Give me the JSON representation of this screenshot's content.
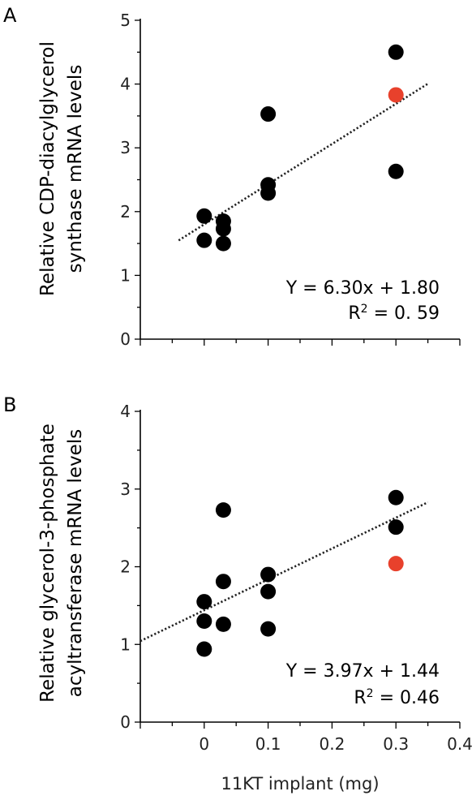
{
  "chart_data": [
    {
      "type": "scatter",
      "panel_label": "A",
      "ylabel": "Relative CDP-diacylglycerol synthase mRNA levels",
      "ylabel_lines": [
        "Relative CDP-diacylglycerol",
        "synthase mRNA levels"
      ],
      "xlabel": "",
      "xlim": [
        -0.1,
        0.4
      ],
      "ylim": [
        0,
        5
      ],
      "yticks": [
        "0",
        "1",
        "2",
        "3",
        "4",
        "5"
      ],
      "xticks": [],
      "grid": false,
      "equation": "Y = 6.30x + 1.80",
      "r2_label": "R",
      "r2_sup": "2",
      "r2_value": " = 0. 59",
      "trendline": {
        "slope": 6.3,
        "intercept": 1.8,
        "x_range": [
          -0.04,
          0.35
        ]
      },
      "points": [
        {
          "x": 0,
          "y": 1.93,
          "color": "#000000"
        },
        {
          "x": 0,
          "y": 1.55,
          "color": "#000000"
        },
        {
          "x": 0.03,
          "y": 1.85,
          "color": "#000000"
        },
        {
          "x": 0.03,
          "y": 1.73,
          "color": "#000000"
        },
        {
          "x": 0.03,
          "y": 1.5,
          "color": "#000000"
        },
        {
          "x": 0.1,
          "y": 3.53,
          "color": "#000000"
        },
        {
          "x": 0.1,
          "y": 2.42,
          "color": "#000000"
        },
        {
          "x": 0.1,
          "y": 2.29,
          "color": "#000000"
        },
        {
          "x": 0.3,
          "y": 4.5,
          "color": "#000000"
        },
        {
          "x": 0.3,
          "y": 3.83,
          "color": "#e8412c"
        },
        {
          "x": 0.3,
          "y": 2.63,
          "color": "#000000"
        }
      ]
    },
    {
      "type": "scatter",
      "panel_label": "B",
      "ylabel": "Relative glycerol-3-phosphate acyltransferase mRNA levels",
      "ylabel_lines": [
        "Relative glycerol-3-phosphate",
        "acyltransferase mRNA levels"
      ],
      "xlabel": "11KT implant (mg)",
      "xlim": [
        -0.1,
        0.4
      ],
      "ylim": [
        0,
        4
      ],
      "yticks": [
        "0",
        "1",
        "2",
        "3",
        "4"
      ],
      "xticks": [
        "0",
        "0.1",
        "0.2",
        "0.3",
        "0.4"
      ],
      "grid": false,
      "equation": "Y = 3.97x + 1.44",
      "r2_label": "R",
      "r2_sup": "2",
      "r2_value": " = 0.46",
      "trendline": {
        "slope": 3.97,
        "intercept": 1.44,
        "x_range": [
          -0.1,
          0.35
        ]
      },
      "points": [
        {
          "x": 0,
          "y": 1.55,
          "color": "#000000"
        },
        {
          "x": 0,
          "y": 1.3,
          "color": "#000000"
        },
        {
          "x": 0,
          "y": 0.94,
          "color": "#000000"
        },
        {
          "x": 0.03,
          "y": 2.73,
          "color": "#000000"
        },
        {
          "x": 0.03,
          "y": 1.81,
          "color": "#000000"
        },
        {
          "x": 0.03,
          "y": 1.26,
          "color": "#000000"
        },
        {
          "x": 0.1,
          "y": 1.9,
          "color": "#000000"
        },
        {
          "x": 0.1,
          "y": 1.68,
          "color": "#000000"
        },
        {
          "x": 0.1,
          "y": 1.2,
          "color": "#000000"
        },
        {
          "x": 0.3,
          "y": 2.89,
          "color": "#000000"
        },
        {
          "x": 0.3,
          "y": 2.51,
          "color": "#000000"
        },
        {
          "x": 0.3,
          "y": 2.04,
          "color": "#e8412c"
        }
      ]
    }
  ]
}
